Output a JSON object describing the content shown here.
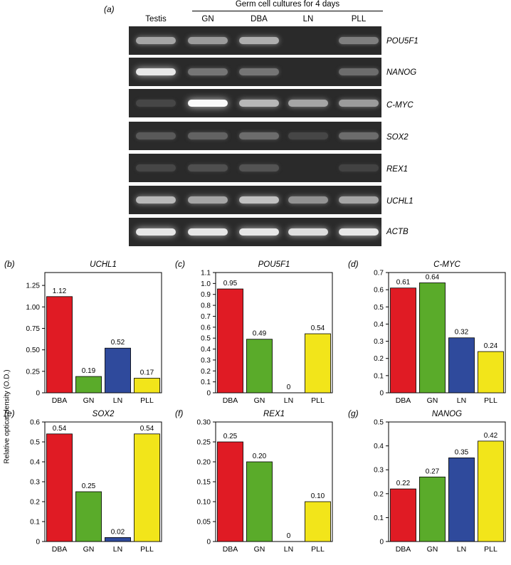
{
  "gel": {
    "panel_letter": "(a)",
    "title": "Germ cell cultures for 4 days",
    "lanes": [
      "Testis",
      "GN",
      "DBA",
      "LN",
      "PLL"
    ],
    "genes": [
      "POU5F1",
      "NANOG",
      "C-MYC",
      "SOX2",
      "REX1",
      "UCHL1",
      "ACTB"
    ],
    "band_intensity": [
      [
        0.55,
        0.5,
        0.6,
        0.0,
        0.35
      ],
      [
        0.9,
        0.3,
        0.3,
        0.0,
        0.25
      ],
      [
        0.05,
        1.0,
        0.65,
        0.55,
        0.5
      ],
      [
        0.15,
        0.2,
        0.25,
        0.05,
        0.25
      ],
      [
        0.05,
        0.1,
        0.12,
        0.0,
        0.03
      ],
      [
        0.65,
        0.55,
        0.7,
        0.45,
        0.55
      ],
      [
        0.9,
        0.9,
        0.9,
        0.85,
        0.9
      ]
    ]
  },
  "ylabel": "Relative optical density (O.D.)",
  "colors": {
    "DBA": "#e01b24",
    "GN": "#5aab2a",
    "LN": "#2f4a9c",
    "PLL": "#f2e51a"
  },
  "chart_data": [
    {
      "type": "bar",
      "panel": "(b)",
      "title": "UCHL1",
      "categories": [
        "DBA",
        "GN",
        "LN",
        "PLL"
      ],
      "values": [
        1.12,
        0.19,
        0.52,
        0.17
      ],
      "value_labels": [
        "1.12",
        "0.19",
        "0.52",
        "0.17"
      ],
      "ylim": [
        0,
        1.4
      ],
      "yticks": [
        "0",
        "0.25",
        "0.50",
        "0.75",
        "1.00",
        "1.25"
      ],
      "ytick_values": [
        0,
        0.25,
        0.5,
        0.75,
        1.0,
        1.25
      ]
    },
    {
      "type": "bar",
      "panel": "(c)",
      "title": "POU5F1",
      "categories": [
        "DBA",
        "GN",
        "LN",
        "PLL"
      ],
      "values": [
        0.95,
        0.49,
        0,
        0.54
      ],
      "value_labels": [
        "0.95",
        "0.49",
        "0",
        "0.54"
      ],
      "ylim": [
        0,
        1.1
      ],
      "yticks": [
        "0",
        "0.1",
        "0.2",
        "0.3",
        "0.4",
        "0.5",
        "0.6",
        "0.7",
        "0.8",
        "0.9",
        "1.0",
        "1.1"
      ],
      "ytick_values": [
        0,
        0.1,
        0.2,
        0.3,
        0.4,
        0.5,
        0.6,
        0.7,
        0.8,
        0.9,
        1.0,
        1.1
      ]
    },
    {
      "type": "bar",
      "panel": "(d)",
      "title": "C-MYC",
      "categories": [
        "DBA",
        "GN",
        "LN",
        "PLL"
      ],
      "values": [
        0.61,
        0.64,
        0.32,
        0.24
      ],
      "value_labels": [
        "0.61",
        "0.64",
        "0.32",
        "0.24"
      ],
      "ylim": [
        0,
        0.7
      ],
      "yticks": [
        "0",
        "0.1",
        "0.2",
        "0.3",
        "0.4",
        "0.5",
        "0.6",
        "0.7"
      ],
      "ytick_values": [
        0,
        0.1,
        0.2,
        0.3,
        0.4,
        0.5,
        0.6,
        0.7
      ]
    },
    {
      "type": "bar",
      "panel": "(e)",
      "title": "SOX2",
      "categories": [
        "DBA",
        "GN",
        "LN",
        "PLL"
      ],
      "values": [
        0.54,
        0.25,
        0.02,
        0.54
      ],
      "value_labels": [
        "0.54",
        "0.25",
        "0.02",
        "0.54"
      ],
      "ylim": [
        0,
        0.6
      ],
      "yticks": [
        "0",
        "0.1",
        "0.2",
        "0.3",
        "0.4",
        "0.5",
        "0.6"
      ],
      "ytick_values": [
        0,
        0.1,
        0.2,
        0.3,
        0.4,
        0.5,
        0.6
      ]
    },
    {
      "type": "bar",
      "panel": "(f)",
      "title": "REX1",
      "categories": [
        "DBA",
        "GN",
        "LN",
        "PLL"
      ],
      "values": [
        0.25,
        0.2,
        0,
        0.1
      ],
      "value_labels": [
        "0.25",
        "0.20",
        "0",
        "0.10"
      ],
      "ylim": [
        0,
        0.3
      ],
      "yticks": [
        "0",
        "0.05",
        "0.10",
        "0.15",
        "0.20",
        "0.25",
        "0.30"
      ],
      "ytick_values": [
        0,
        0.05,
        0.1,
        0.15,
        0.2,
        0.25,
        0.3
      ]
    },
    {
      "type": "bar",
      "panel": "(g)",
      "title": "NANOG",
      "categories": [
        "DBA",
        "GN",
        "LN",
        "PLL"
      ],
      "values": [
        0.22,
        0.27,
        0.35,
        0.42
      ],
      "value_labels": [
        "0.22",
        "0.27",
        "0.35",
        "0.42"
      ],
      "ylim": [
        0,
        0.5
      ],
      "yticks": [
        "0",
        "0.1",
        "0.2",
        "0.3",
        "0.4",
        "0.5"
      ],
      "ytick_values": [
        0,
        0.1,
        0.2,
        0.3,
        0.4,
        0.5
      ]
    }
  ]
}
